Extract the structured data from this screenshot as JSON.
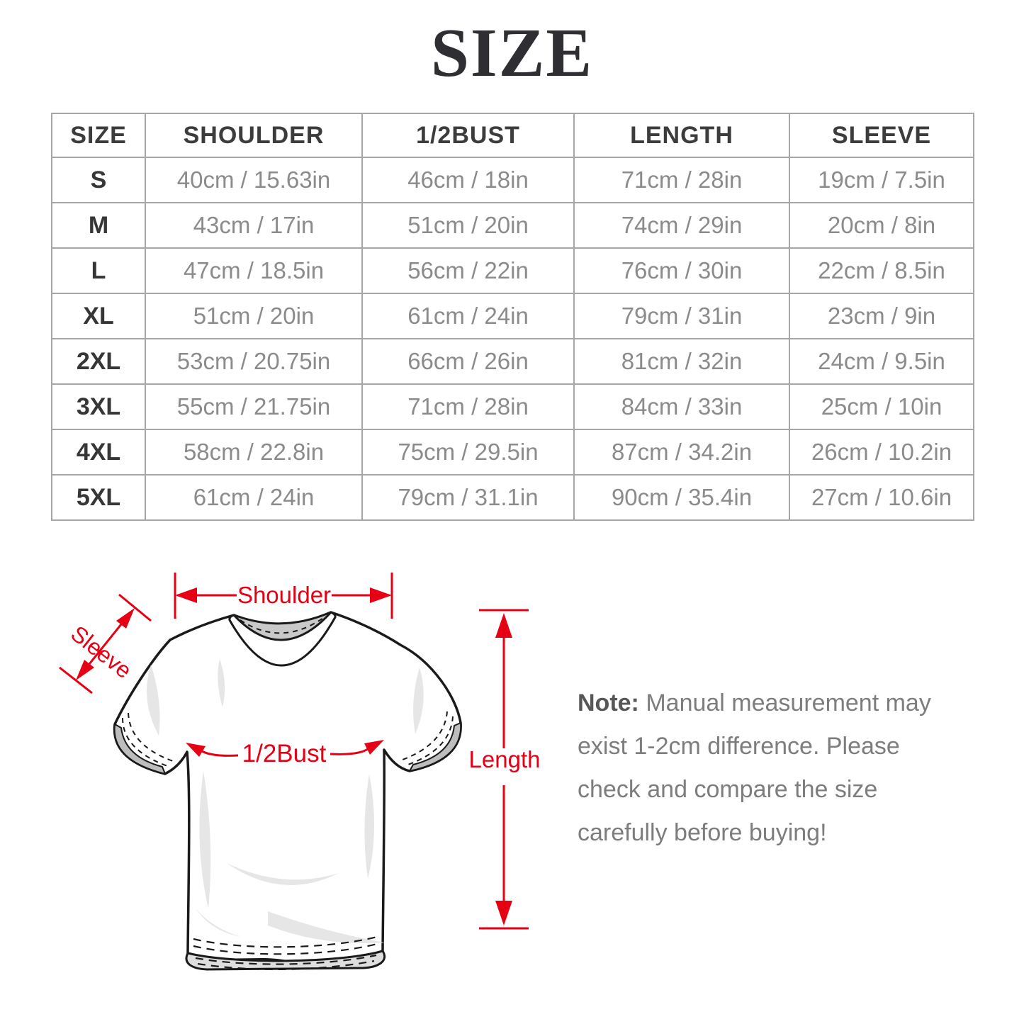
{
  "title": "SIZE",
  "table": {
    "columns": [
      "SIZE",
      "SHOULDER",
      "1/2BUST",
      "LENGTH",
      "SLEEVE"
    ],
    "rows": [
      {
        "size": "S",
        "shoulder": "40cm / 15.63in",
        "half_bust": "46cm / 18in",
        "length": "71cm / 28in",
        "sleeve": "19cm / 7.5in"
      },
      {
        "size": "M",
        "shoulder": "43cm / 17in",
        "half_bust": "51cm / 20in",
        "length": "74cm / 29in",
        "sleeve": "20cm / 8in"
      },
      {
        "size": "L",
        "shoulder": "47cm / 18.5in",
        "half_bust": "56cm / 22in",
        "length": "76cm / 30in",
        "sleeve": "22cm / 8.5in"
      },
      {
        "size": "XL",
        "shoulder": "51cm / 20in",
        "half_bust": "61cm / 24in",
        "length": "79cm / 31in",
        "sleeve": "23cm / 9in"
      },
      {
        "size": "2XL",
        "shoulder": "53cm / 20.75in",
        "half_bust": "66cm / 26in",
        "length": "81cm / 32in",
        "sleeve": "24cm / 9.5in"
      },
      {
        "size": "3XL",
        "shoulder": "55cm / 21.75in",
        "half_bust": "71cm / 28in",
        "length": "84cm / 33in",
        "sleeve": "25cm / 10in"
      },
      {
        "size": "4XL",
        "shoulder": "58cm / 22.8in",
        "half_bust": "75cm / 29.5in",
        "length": "87cm / 34.2in",
        "sleeve": "26cm / 10.2in"
      },
      {
        "size": "5XL",
        "shoulder": "61cm / 24in",
        "half_bust": "79cm / 31.1in",
        "length": "90cm / 35.4in",
        "sleeve": "27cm / 10.6in"
      }
    ]
  },
  "diagram": {
    "labels": {
      "shoulder": "Shoulder",
      "sleeve": "Sleeve",
      "half_bust": "1/2Bust",
      "length": "Length"
    },
    "arrow_color": "#e60014"
  },
  "note": {
    "label": "Note:",
    "body": " Manual measurement may exist 1-2cm difference. Please check and compare the size carefully before buying!"
  }
}
